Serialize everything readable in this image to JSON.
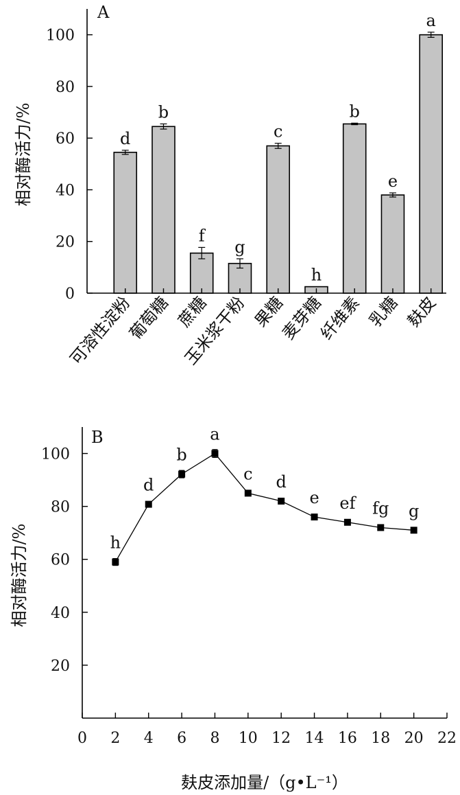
{
  "chart_data": [
    {
      "type": "bar",
      "panel_label": "A",
      "title": "",
      "xlabel": "",
      "ylabel": "相对酶活力/%",
      "ylim": [
        0,
        110
      ],
      "yticks": [
        0,
        20,
        40,
        60,
        80,
        100
      ],
      "categories": [
        "可溶性淀粉",
        "葡萄糖",
        "蔗糖",
        "玉米浆干粉",
        "果糖",
        "麦芽糖",
        "纤维素",
        "乳糖",
        "麸皮"
      ],
      "values": [
        54.5,
        64.5,
        15.5,
        11.5,
        57,
        2.5,
        65.5,
        38,
        100
      ],
      "errors": [
        0.8,
        1.0,
        2.2,
        1.8,
        1.0,
        0,
        0.3,
        0.8,
        1.0
      ],
      "significance": [
        "d",
        "b",
        "f",
        "g",
        "c",
        "h",
        "b",
        "e",
        "a"
      ]
    },
    {
      "type": "line",
      "panel_label": "B",
      "title": "",
      "xlabel": "麸皮添加量/（g•L⁻¹）",
      "ylabel": "相对酶活力/%",
      "xlim": [
        0,
        22
      ],
      "ylim": [
        0,
        110
      ],
      "xticks": [
        0,
        2,
        4,
        6,
        8,
        10,
        12,
        14,
        16,
        18,
        20,
        22
      ],
      "yticks": [
        20,
        40,
        60,
        80,
        100
      ],
      "x": [
        2,
        4,
        6,
        8,
        10,
        12,
        14,
        16,
        18,
        20
      ],
      "y": [
        59,
        80.8,
        92.2,
        100,
        85,
        82,
        76,
        74,
        72,
        71
      ],
      "errors": [
        1.3,
        0.8,
        1.4,
        1.5,
        0.7,
        0.8,
        0.9,
        0.6,
        0.6,
        0.6
      ],
      "significance": [
        "h",
        "d",
        "b",
        "a",
        "c",
        "d",
        "e",
        "ef",
        "fg",
        "g"
      ]
    }
  ]
}
